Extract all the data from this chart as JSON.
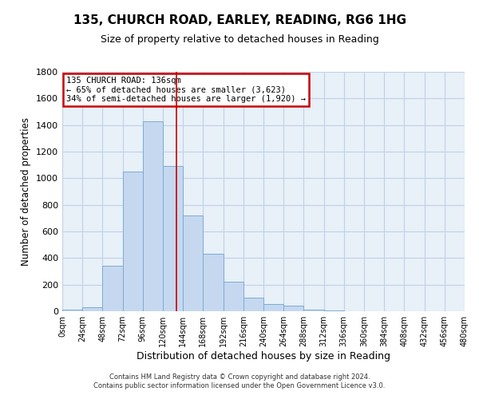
{
  "title": "135, CHURCH ROAD, EARLEY, READING, RG6 1HG",
  "subtitle": "Size of property relative to detached houses in Reading",
  "xlabel": "Distribution of detached houses by size in Reading",
  "ylabel": "Number of detached properties",
  "footer_line1": "Contains HM Land Registry data © Crown copyright and database right 2024.",
  "footer_line2": "Contains public sector information licensed under the Open Government Licence v3.0.",
  "annotation_line1": "135 CHURCH ROAD: 136sqm",
  "annotation_line2": "← 65% of detached houses are smaller (3,623)",
  "annotation_line3": "34% of semi-detached houses are larger (1,920) →",
  "bar_left_edges": [
    0,
    24,
    48,
    72,
    96,
    120,
    144,
    168,
    192,
    216,
    240,
    264,
    288,
    312,
    336,
    360,
    384,
    408,
    432,
    456
  ],
  "bar_heights": [
    15,
    30,
    345,
    1050,
    1430,
    1095,
    720,
    430,
    220,
    105,
    55,
    40,
    15,
    5,
    2,
    1,
    0,
    0,
    0,
    0
  ],
  "bin_width": 24,
  "bar_color": "#c5d8f0",
  "bar_edge_color": "#7bacd4",
  "marker_line_x": 136,
  "marker_line_color": "#cc0000",
  "ylim": [
    0,
    1800
  ],
  "xlim": [
    0,
    480
  ],
  "xtick_positions": [
    0,
    24,
    48,
    72,
    96,
    120,
    144,
    168,
    192,
    216,
    240,
    264,
    288,
    312,
    336,
    360,
    384,
    408,
    432,
    456,
    480
  ],
  "xtick_labels": [
    "0sqm",
    "24sqm",
    "48sqm",
    "72sqm",
    "96sqm",
    "120sqm",
    "144sqm",
    "168sqm",
    "192sqm",
    "216sqm",
    "240sqm",
    "264sqm",
    "288sqm",
    "312sqm",
    "336sqm",
    "360sqm",
    "384sqm",
    "408sqm",
    "432sqm",
    "456sqm",
    "480sqm"
  ],
  "ytick_positions": [
    0,
    200,
    400,
    600,
    800,
    1000,
    1200,
    1400,
    1600,
    1800
  ],
  "grid_color": "#c0d0e8",
  "annotation_box_edge_color": "#cc0000",
  "background_color": "#e8f0f8",
  "fig_background": "#ffffff"
}
